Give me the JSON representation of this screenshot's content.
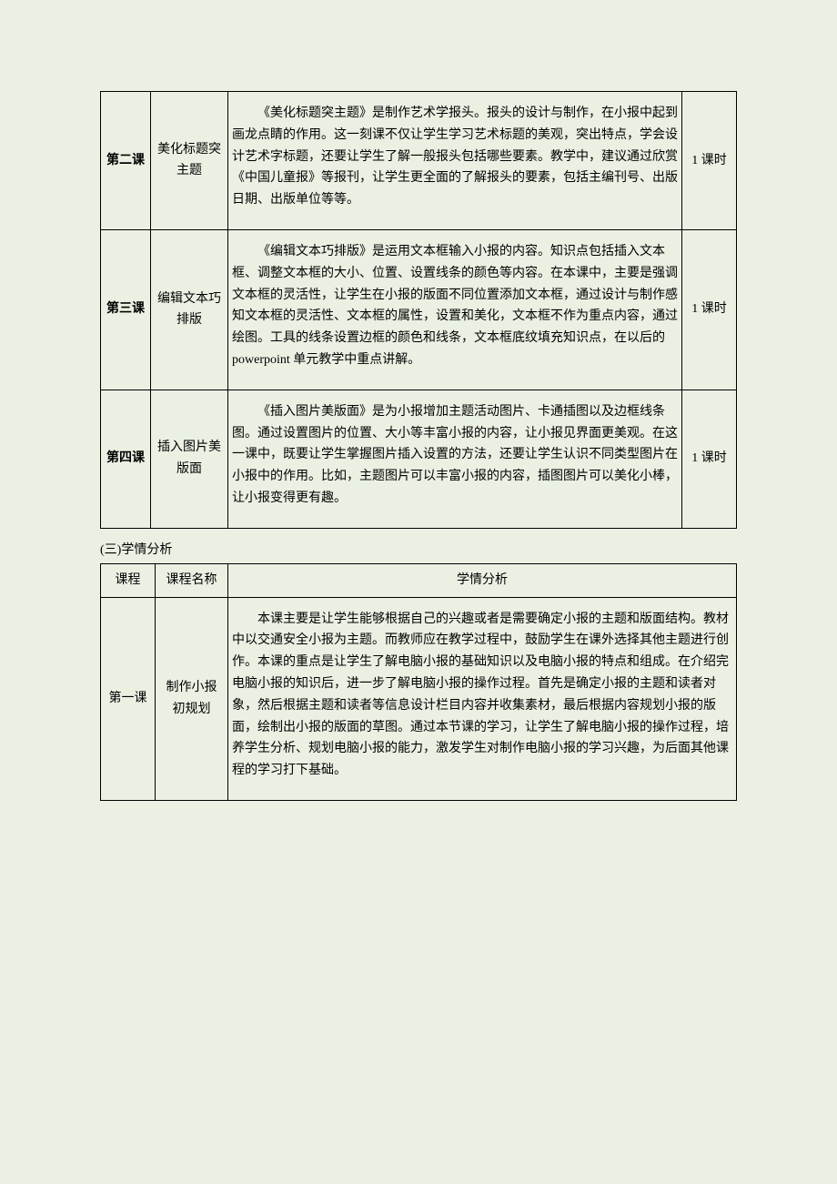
{
  "table1": {
    "rows": [
      {
        "course": "第二课",
        "name": "美化标题突主题",
        "desc": "《美化标题突主题》是制作艺术学报头。报头的设计与制作，在小报中起到画龙点睛的作用。这一刻课不仅让学生学习艺术标题的美观，突出特点，学会设计艺术字标题，还要让学生了解一般报头包括哪些要素。教学中，建议通过欣赏《中国儿童报》等报刊，让学生更全面的了解报头的要素，包括主编刊号、出版日期、出版单位等等。",
        "time": "1 课时"
      },
      {
        "course": "第三课",
        "name": "编辑文本巧排版",
        "desc": "《编辑文本巧排版》是运用文本框输入小报的内容。知识点包括插入文本框、调整文本框的大小、位置、设置线条的颜色等内容。在本课中，主要是强调文本框的灵活性，让学生在小报的版面不同位置添加文本框，通过设计与制作感知文本框的灵活性、文本框的属性，设置和美化，文本框不作为重点内容，通过绘图。工具的线条设置边框的颜色和线条，文本框底纹填充知识点，在以后的powerpoint 单元教学中重点讲解。",
        "time": "1 课时"
      },
      {
        "course": "第四课",
        "name": "插入图片美版面",
        "desc": "《插入图片美版面》是为小报增加主题活动图片、卡通插图以及边框线条图。通过设置图片的位置、大小等丰富小报的内容，让小报见界面更美观。在这一课中，既要让学生掌握图片插入设置的方法，还要让学生认识不同类型图片在小报中的作用。比如，主题图片可以丰富小报的内容，插图图片可以美化小棒，让小报变得更有趣。",
        "time": "1 课时"
      }
    ]
  },
  "section_heading": "(三)学情分析",
  "table2": {
    "headers": {
      "course": "课程",
      "name": "课程名称",
      "analysis": "学情分析"
    },
    "rows": [
      {
        "course": "第一课",
        "name": "制作小报初规划",
        "desc": "本课主要是让学生能够根据自己的兴趣或者是需要确定小报的主题和版面结构。教材中以交通安全小报为主题。而教师应在教学过程中，鼓励学生在课外选择其他主题进行创作。本课的重点是让学生了解电脑小报的基础知识以及电脑小报的特点和组成。在介绍完电脑小报的知识后，进一步了解电脑小报的操作过程。首先是确定小报的主题和读者对象，然后根据主题和读者等信息设计栏目内容并收集素材，最后根据内容规划小报的版面，绘制出小报的版面的草图。通过本节课的学习，让学生了解电脑小报的操作过程，培养学生分析、规划电脑小报的能力，激发学生对制作电脑小报的学习兴趣，为后面其他课程的学习打下基础。"
      }
    ]
  }
}
